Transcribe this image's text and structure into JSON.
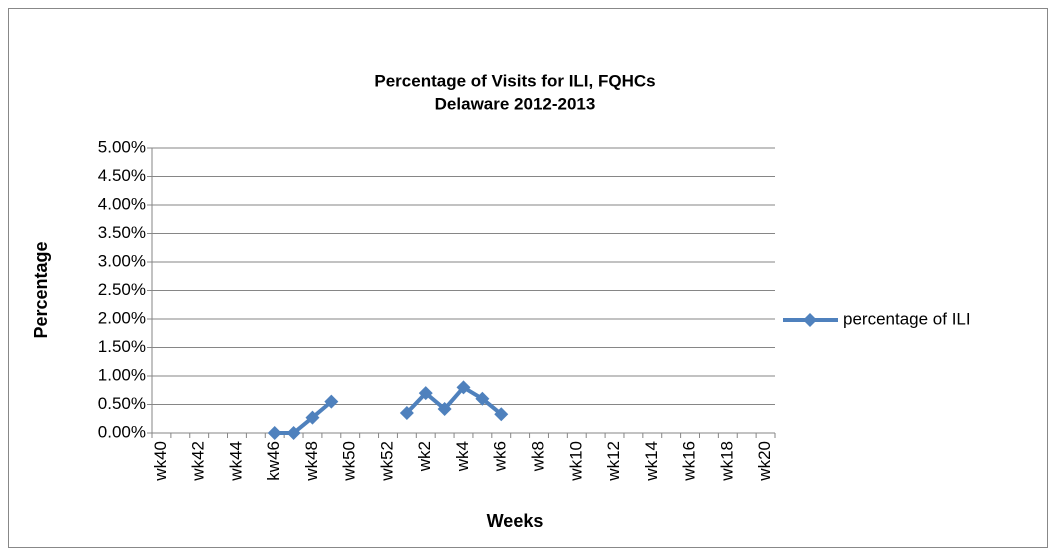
{
  "chart_data": {
    "type": "line",
    "title": "Percentage of Visits for ILI, FQHCs",
    "subtitle": "Delaware 2012-2013",
    "x_label": "Weeks",
    "y_label": "Percentage",
    "categories": [
      "wk40",
      null,
      "wk42",
      null,
      "wk44",
      null,
      "kw46",
      null,
      "wk48",
      null,
      "wk50",
      null,
      "wk52",
      null,
      "wk2",
      null,
      "wk4",
      null,
      "wk6",
      null,
      "wk8",
      null,
      "wk10",
      null,
      "wk12",
      null,
      "wk14",
      null,
      "wk16",
      null,
      "wk18",
      null,
      "wk20"
    ],
    "series": [
      {
        "name": "percentage of ILI",
        "color": "#4f81bd",
        "values": [
          null,
          null,
          null,
          null,
          null,
          null,
          0,
          0,
          0.27,
          0.55,
          null,
          null,
          null,
          0.35,
          0.7,
          0.42,
          0.8,
          0.6,
          0.33,
          null,
          null,
          null,
          null,
          null,
          null,
          null,
          null,
          null,
          null,
          null,
          null,
          null,
          null
        ]
      }
    ],
    "ylim": [
      0,
      5
    ],
    "yticks": [
      {
        "value": 0,
        "label": "0.00%"
      },
      {
        "value": 0.5,
        "label": "0.50%"
      },
      {
        "value": 1,
        "label": "1.00%"
      },
      {
        "value": 1.5,
        "label": "1.50%"
      },
      {
        "value": 2,
        "label": "2.00%"
      },
      {
        "value": 2.5,
        "label": "2.50%"
      },
      {
        "value": 3,
        "label": "3.00%"
      },
      {
        "value": 3.5,
        "label": "3.50%"
      },
      {
        "value": 4,
        "label": "4.00%"
      },
      {
        "value": 4.5,
        "label": "4.50%"
      },
      {
        "value": 5,
        "label": "5.00%"
      }
    ],
    "grid": true,
    "legend": "right"
  }
}
